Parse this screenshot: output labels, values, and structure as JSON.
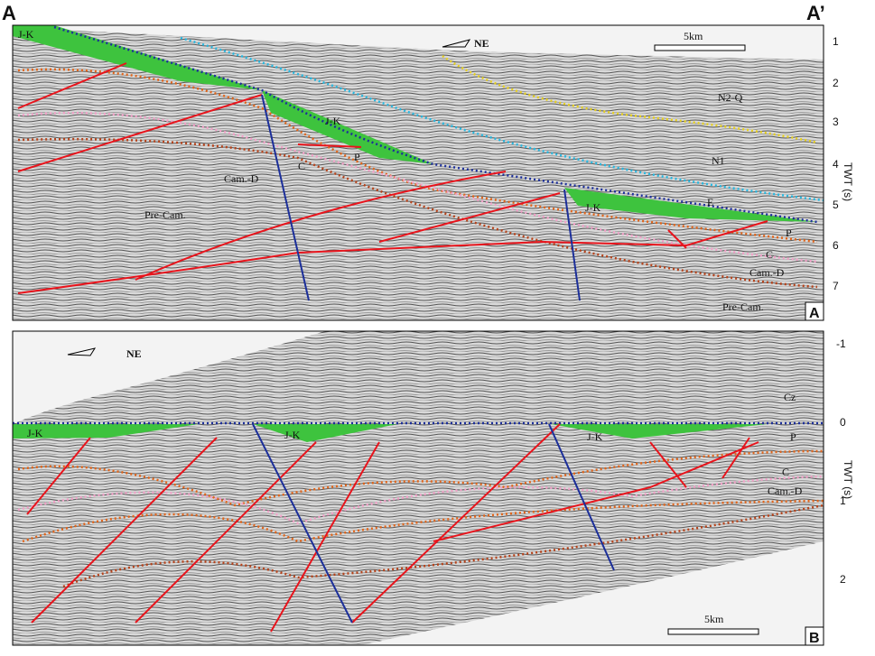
{
  "panel_a": {
    "left_label": "A",
    "right_label": "A’",
    "panel_label": "A",
    "north": "NE",
    "scale": "5km",
    "axis_title": "TWT (s)",
    "ticks": [
      "1",
      "2",
      "3",
      "4",
      "5",
      "6",
      "7"
    ],
    "units": [
      "J-K",
      "N2-Q",
      "J-K",
      "P",
      "N1",
      "C",
      "Cam.-D",
      "Pre-Cam.",
      "E",
      "J-K",
      "P",
      "C",
      "Cam.-D",
      "Pre-Cam."
    ]
  },
  "panel_b": {
    "panel_label": "B",
    "north": "NE",
    "scale": "5km",
    "axis_title": "TWT (s)",
    "ticks": [
      "-1",
      "0",
      "1",
      "2"
    ],
    "units": [
      "Cz",
      "J-K",
      "J-K",
      "J-K",
      "P",
      "C",
      "Cam.-D"
    ]
  }
}
